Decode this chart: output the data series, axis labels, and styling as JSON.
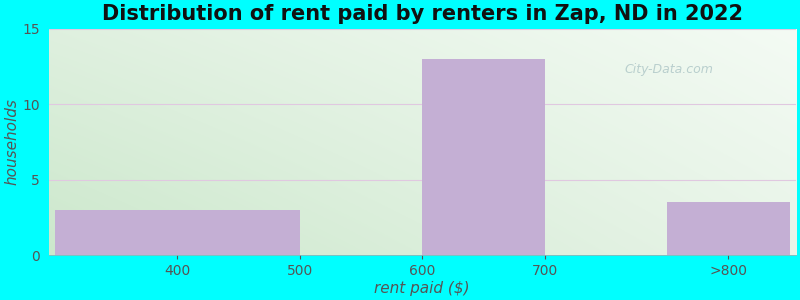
{
  "title": "Distribution of rent paid by renters in Zap, ND in 2022",
  "xlabel": "rent paid ($)",
  "ylabel": "households",
  "background_color": "#00FFFF",
  "bar_color": "#c4afd4",
  "values": [
    3,
    0,
    13,
    0,
    3.5
  ],
  "x_positions": [
    0,
    2,
    3,
    4,
    5
  ],
  "bar_widths": [
    2,
    1,
    1,
    1,
    1
  ],
  "xtick_positions": [
    1,
    2,
    3,
    4,
    5.5
  ],
  "xtick_labels": [
    "400",
    "500",
    "600",
    "700",
    ">800"
  ],
  "ylim": [
    0,
    15
  ],
  "yticks": [
    0,
    5,
    10,
    15
  ],
  "xlim": [
    -0.05,
    6.05
  ],
  "title_fontsize": 15,
  "axis_label_fontsize": 11,
  "tick_fontsize": 10,
  "grid_color": "#e0c8e0",
  "watermark_text": "City-Data.com",
  "title_color": "#111111",
  "axis_label_color": "#555555",
  "tick_color": "#555555",
  "grad_left_color": "#d4ead4",
  "grad_right_color": "#eef6ee",
  "grad_top_color": "#f0f8f0"
}
